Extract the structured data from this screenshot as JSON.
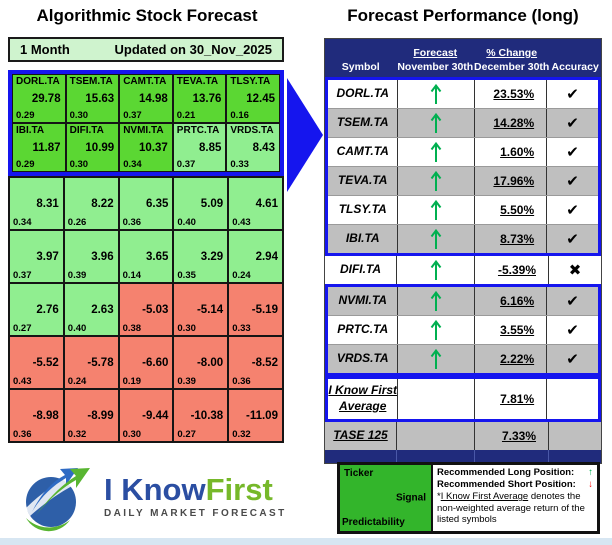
{
  "left": {
    "title": "Algorithmic Stock Forecast",
    "period": "1 Month",
    "updated": "Updated on 30_Nov_2025",
    "groups": [
      {
        "bordered": true,
        "rows": [
          {
            "cells": [
              {
                "ticker": "DORL.TA",
                "signal": "29.78",
                "predictability": "0.29",
                "tone": "bright"
              },
              {
                "ticker": "TSEM.TA",
                "signal": "15.63",
                "predictability": "0.30",
                "tone": "bright"
              },
              {
                "ticker": "CAMT.TA",
                "signal": "14.98",
                "predictability": "0.37",
                "tone": "bright"
              },
              {
                "ticker": "TEVA.TA",
                "signal": "13.76",
                "predictability": "0.21",
                "tone": "bright"
              },
              {
                "ticker": "TLSY.TA",
                "signal": "12.45",
                "predictability": "0.16",
                "tone": "bright"
              }
            ]
          },
          {
            "cells": [
              {
                "ticker": "IBI.TA",
                "signal": "11.87",
                "predictability": "0.29",
                "tone": "bright"
              },
              {
                "ticker": "DIFI.TA",
                "signal": "10.99",
                "predictability": "0.30",
                "tone": "bright"
              },
              {
                "ticker": "NVMI.TA",
                "signal": "10.37",
                "predictability": "0.34",
                "tone": "bright"
              },
              {
                "ticker": "PRTC.TA",
                "signal": "8.85",
                "predictability": "0.37",
                "tone": "light"
              },
              {
                "ticker": "VRDS.TA",
                "signal": "8.43",
                "predictability": "0.33",
                "tone": "light"
              }
            ]
          }
        ]
      },
      {
        "bordered": false,
        "rows": [
          {
            "cells": [
              {
                "signal": "8.31",
                "predictability": "0.34",
                "tone": "light"
              },
              {
                "signal": "8.22",
                "predictability": "0.26",
                "tone": "light"
              },
              {
                "signal": "6.35",
                "predictability": "0.36",
                "tone": "light"
              },
              {
                "signal": "5.09",
                "predictability": "0.40",
                "tone": "light"
              },
              {
                "signal": "4.61",
                "predictability": "0.43",
                "tone": "light"
              }
            ]
          },
          {
            "cells": [
              {
                "signal": "3.97",
                "predictability": "0.37",
                "tone": "light"
              },
              {
                "signal": "3.96",
                "predictability": "0.39",
                "tone": "light"
              },
              {
                "signal": "3.65",
                "predictability": "0.14",
                "tone": "light"
              },
              {
                "signal": "3.29",
                "predictability": "0.35",
                "tone": "light"
              },
              {
                "signal": "2.94",
                "predictability": "0.24",
                "tone": "light"
              }
            ]
          },
          {
            "cells": [
              {
                "signal": "2.76",
                "predictability": "0.27",
                "tone": "light"
              },
              {
                "signal": "2.63",
                "predictability": "0.40",
                "tone": "light"
              },
              {
                "signal": "-5.03",
                "predictability": "0.38",
                "tone": "red"
              },
              {
                "signal": "-5.14",
                "predictability": "0.30",
                "tone": "red"
              },
              {
                "signal": "-5.19",
                "predictability": "0.33",
                "tone": "red"
              }
            ]
          },
          {
            "cells": [
              {
                "signal": "-5.52",
                "predictability": "0.43",
                "tone": "red"
              },
              {
                "signal": "-5.78",
                "predictability": "0.24",
                "tone": "red"
              },
              {
                "signal": "-6.60",
                "predictability": "0.19",
                "tone": "red"
              },
              {
                "signal": "-8.00",
                "predictability": "0.39",
                "tone": "red"
              },
              {
                "signal": "-8.52",
                "predictability": "0.36",
                "tone": "red"
              }
            ]
          },
          {
            "cells": [
              {
                "signal": "-8.98",
                "predictability": "0.36",
                "tone": "red"
              },
              {
                "signal": "-8.99",
                "predictability": "0.32",
                "tone": "red"
              },
              {
                "signal": "-9.44",
                "predictability": "0.30",
                "tone": "red"
              },
              {
                "signal": "-10.38",
                "predictability": "0.27",
                "tone": "red"
              },
              {
                "signal": "-11.09",
                "predictability": "0.32",
                "tone": "red"
              }
            ]
          }
        ]
      }
    ]
  },
  "right": {
    "title": "Forecast Performance (long)",
    "header": {
      "symbol": "Symbol",
      "forecast": "Forecast",
      "forecast_date": "November 30th",
      "change": "% Change",
      "change_date": "December 30th",
      "accuracy": "Accuracy"
    },
    "groups": [
      {
        "bordered": true,
        "rows": [
          {
            "symbol": "DORL.TA",
            "forecast": "up",
            "change": "23.53%",
            "accuracy": "check",
            "shade": "white"
          },
          {
            "symbol": "TSEM.TA",
            "forecast": "up",
            "change": "14.28%",
            "accuracy": "check",
            "shade": "gray"
          },
          {
            "symbol": "CAMT.TA",
            "forecast": "up",
            "change": "1.60%",
            "accuracy": "check",
            "shade": "white"
          },
          {
            "symbol": "TEVA.TA",
            "forecast": "up",
            "change": "17.96%",
            "accuracy": "check",
            "shade": "gray"
          },
          {
            "symbol": "TLSY.TA",
            "forecast": "up",
            "change": "5.50%",
            "accuracy": "check",
            "shade": "white"
          },
          {
            "symbol": "IBI.TA",
            "forecast": "up",
            "change": "8.73%",
            "accuracy": "check",
            "shade": "gray"
          }
        ]
      },
      {
        "bordered": false,
        "rows": [
          {
            "symbol": "DIFI.TA",
            "forecast": "up",
            "change": "-5.39%",
            "accuracy": "cross",
            "shade": "white"
          }
        ]
      },
      {
        "bordered": true,
        "rows": [
          {
            "symbol": "NVMI.TA",
            "forecast": "up",
            "change": "6.16%",
            "accuracy": "check",
            "shade": "gray"
          },
          {
            "symbol": "PRTC.TA",
            "forecast": "up",
            "change": "3.55%",
            "accuracy": "check",
            "shade": "white"
          },
          {
            "symbol": "VRDS.TA",
            "forecast": "up",
            "change": "2.22%",
            "accuracy": "check",
            "shade": "gray"
          }
        ]
      },
      {
        "bordered": true,
        "rows": [
          {
            "symbol_lines": [
              "I Know First",
              "Average"
            ],
            "change": "7.81%",
            "shade": "white",
            "tall": true
          }
        ]
      },
      {
        "bordered": false,
        "rows": [
          {
            "symbol": "TASE 125",
            "change": "7.33%",
            "shade": "gray"
          }
        ]
      }
    ]
  },
  "legend": {
    "ticker_label": "Ticker",
    "signal_label": "Signal",
    "predictability_label": "Predictability",
    "long_label": "Recommended Long Position:",
    "long_arrow": "↑",
    "short_label": "Recommended Short Position:",
    "short_arrow": "↓",
    "note_prefix": "*",
    "note_underline": "I Know First Average",
    "note_rest": " denotes the non-weighted average return of the listed symbols"
  },
  "logo": {
    "name_part1": "I Know",
    "name_part2": "First",
    "subtitle": "DAILY MARKET FORECAST"
  },
  "colors": {
    "bright_green": "#5BD733",
    "light_green": "#90EE90",
    "salmon_red": "#F5826F",
    "highlight_blue": "#1515EE",
    "header_navy": "#202B7C",
    "row_gray": "#BFBFBF",
    "pale_green_bar": "#CFF3CE",
    "legend_green": "#33B52B",
    "arrow_green": "#00B050",
    "arrow_red": "#FF0000"
  },
  "chart_data": [
    {
      "type": "table",
      "title": "Algorithmic Stock Forecast",
      "subtitle": "1 Month — Updated on 30_Nov_2025",
      "description": "5x7 grid of signal (large number) and predictability (small number) cells; green = positive signal, red = negative signal; top two ticker rows highlighted in blue",
      "rows": [
        [
          {
            "ticker": "DORL.TA",
            "signal": 29.78,
            "predictability": 0.29
          },
          {
            "ticker": "TSEM.TA",
            "signal": 15.63,
            "predictability": 0.3
          },
          {
            "ticker": "CAMT.TA",
            "signal": 14.98,
            "predictability": 0.37
          },
          {
            "ticker": "TEVA.TA",
            "signal": 13.76,
            "predictability": 0.21
          },
          {
            "ticker": "TLSY.TA",
            "signal": 12.45,
            "predictability": 0.16
          }
        ],
        [
          {
            "ticker": "IBI.TA",
            "signal": 11.87,
            "predictability": 0.29
          },
          {
            "ticker": "DIFI.TA",
            "signal": 10.99,
            "predictability": 0.3
          },
          {
            "ticker": "NVMI.TA",
            "signal": 10.37,
            "predictability": 0.34
          },
          {
            "ticker": "PRTC.TA",
            "signal": 8.85,
            "predictability": 0.37
          },
          {
            "ticker": "VRDS.TA",
            "signal": 8.43,
            "predictability": 0.33
          }
        ],
        [
          {
            "signal": 8.31,
            "predictability": 0.34
          },
          {
            "signal": 8.22,
            "predictability": 0.26
          },
          {
            "signal": 6.35,
            "predictability": 0.36
          },
          {
            "signal": 5.09,
            "predictability": 0.4
          },
          {
            "signal": 4.61,
            "predictability": 0.43
          }
        ],
        [
          {
            "signal": 3.97,
            "predictability": 0.37
          },
          {
            "signal": 3.96,
            "predictability": 0.39
          },
          {
            "signal": 3.65,
            "predictability": 0.14
          },
          {
            "signal": 3.29,
            "predictability": 0.35
          },
          {
            "signal": 2.94,
            "predictability": 0.24
          }
        ],
        [
          {
            "signal": 2.76,
            "predictability": 0.27
          },
          {
            "signal": 2.63,
            "predictability": 0.4
          },
          {
            "signal": -5.03,
            "predictability": 0.38
          },
          {
            "signal": -5.14,
            "predictability": 0.3
          },
          {
            "signal": -5.19,
            "predictability": 0.33
          }
        ],
        [
          {
            "signal": -5.52,
            "predictability": 0.43
          },
          {
            "signal": -5.78,
            "predictability": 0.24
          },
          {
            "signal": -6.6,
            "predictability": 0.19
          },
          {
            "signal": -8.0,
            "predictability": 0.39
          },
          {
            "signal": -8.52,
            "predictability": 0.36
          }
        ],
        [
          {
            "signal": -8.98,
            "predictability": 0.36
          },
          {
            "signal": -8.99,
            "predictability": 0.32
          },
          {
            "signal": -9.44,
            "predictability": 0.3
          },
          {
            "signal": -10.38,
            "predictability": 0.27
          },
          {
            "signal": -11.09,
            "predictability": 0.32
          }
        ]
      ]
    },
    {
      "type": "table",
      "title": "Forecast Performance (long)",
      "columns": [
        "Symbol",
        "Forecast November 30th",
        "% Change December 30th",
        "Accuracy"
      ],
      "rows": [
        [
          "DORL.TA",
          "up",
          "23.53%",
          "correct"
        ],
        [
          "TSEM.TA",
          "up",
          "14.28%",
          "correct"
        ],
        [
          "CAMT.TA",
          "up",
          "1.60%",
          "correct"
        ],
        [
          "TEVA.TA",
          "up",
          "17.96%",
          "correct"
        ],
        [
          "TLSY.TA",
          "up",
          "5.50%",
          "correct"
        ],
        [
          "IBI.TA",
          "up",
          "8.73%",
          "correct"
        ],
        [
          "DIFI.TA",
          "up",
          "-5.39%",
          "incorrect"
        ],
        [
          "NVMI.TA",
          "up",
          "6.16%",
          "correct"
        ],
        [
          "PRTC.TA",
          "up",
          "3.55%",
          "correct"
        ],
        [
          "VRDS.TA",
          "up",
          "2.22%",
          "correct"
        ],
        [
          "I Know First Average",
          "",
          "7.81%",
          ""
        ],
        [
          "TASE 125",
          "",
          "7.33%",
          ""
        ]
      ]
    }
  ]
}
